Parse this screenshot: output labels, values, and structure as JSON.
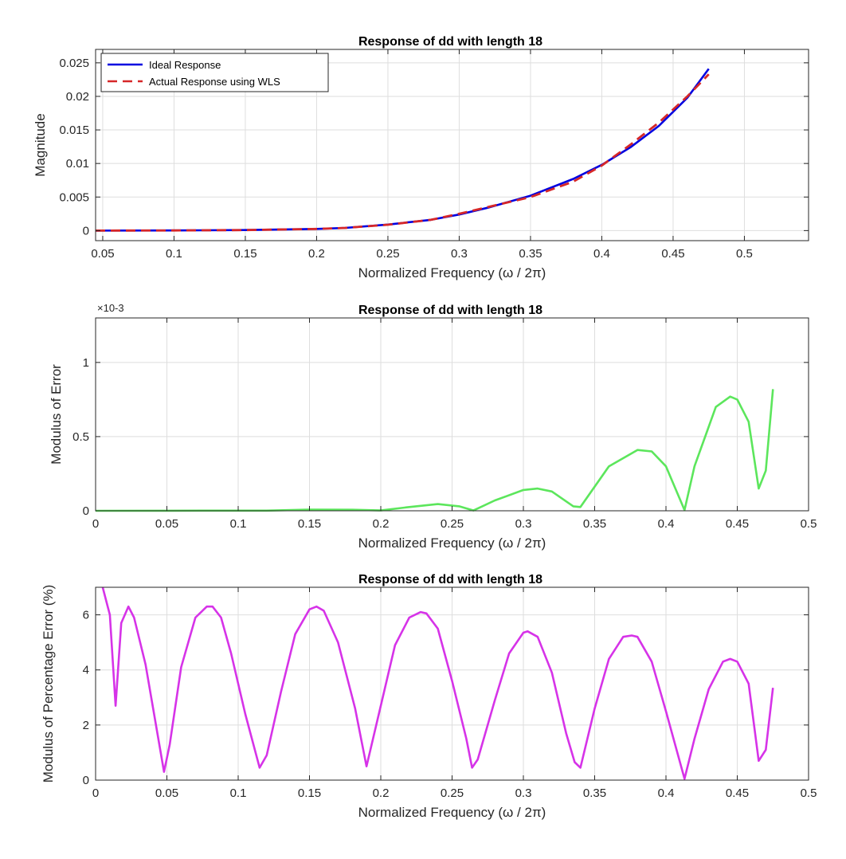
{
  "chart_data": [
    {
      "type": "line",
      "title": "Response of dd with length 18",
      "xlabel": "Normalized Frequency (ω / 2π)",
      "ylabel": "Magnitude",
      "xlim": [
        0.045,
        0.545
      ],
      "ylim": [
        -0.0015,
        0.027
      ],
      "xticks": [
        0.05,
        0.1,
        0.15,
        0.2,
        0.25,
        0.3,
        0.35,
        0.4,
        0.45,
        0.5
      ],
      "xtick_labels": [
        "0.05",
        "0.1",
        "0.15",
        "0.2",
        "0.25",
        "0.3",
        "0.35",
        "0.4",
        "0.45",
        "0.5"
      ],
      "yticks": [
        0,
        0.005,
        0.01,
        0.015,
        0.02,
        0.025
      ],
      "ytick_labels": [
        "0",
        "0.005",
        "0.01",
        "0.015",
        "0.02",
        "0.025"
      ],
      "grid": true,
      "legend_position": "top-left",
      "series": [
        {
          "name": "Ideal Response",
          "color": "#0000e0",
          "style": "solid",
          "x": [
            0.045,
            0.1,
            0.15,
            0.2,
            0.22,
            0.25,
            0.28,
            0.3,
            0.32,
            0.35,
            0.38,
            0.4,
            0.42,
            0.44,
            0.46,
            0.475
          ],
          "y": [
            0,
            2e-05,
            8e-05,
            0.00025,
            0.0004,
            0.0009,
            0.0016,
            0.0024,
            0.0034,
            0.0052,
            0.0077,
            0.0098,
            0.0124,
            0.0156,
            0.0198,
            0.0241
          ]
        },
        {
          "name": "Actual Response using WLS",
          "color": "#d62728",
          "style": "dashed",
          "x": [
            0.045,
            0.1,
            0.15,
            0.2,
            0.22,
            0.25,
            0.28,
            0.3,
            0.32,
            0.35,
            0.38,
            0.4,
            0.42,
            0.44,
            0.46,
            0.475
          ],
          "y": [
            0,
            2e-05,
            8e-05,
            0.00025,
            0.0004,
            0.00088,
            0.0016,
            0.0025,
            0.0035,
            0.005,
            0.0073,
            0.0097,
            0.0128,
            0.0161,
            0.02,
            0.0233
          ]
        }
      ]
    },
    {
      "type": "line",
      "title": "Response of dd with length 18",
      "xlabel": "Normalized Frequency (ω / 2π)",
      "ylabel": "Modulus of Error",
      "y_exponent": "×10-3",
      "xlim": [
        0,
        0.5
      ],
      "ylim": [
        0,
        1.3
      ],
      "xticks": [
        0,
        0.05,
        0.1,
        0.15,
        0.2,
        0.25,
        0.3,
        0.35,
        0.4,
        0.45,
        0.5
      ],
      "xtick_labels": [
        "0",
        "0.05",
        "0.1",
        "0.15",
        "0.2",
        "0.25",
        "0.3",
        "0.35",
        "0.4",
        "0.45",
        "0.5"
      ],
      "yticks": [
        0,
        0.5,
        1
      ],
      "ytick_labels": [
        "0",
        "0.5",
        "1"
      ],
      "grid": true,
      "series": [
        {
          "color": "#5ce65c",
          "x": [
            0,
            0.05,
            0.1,
            0.12,
            0.15,
            0.18,
            0.2,
            0.22,
            0.24,
            0.255,
            0.265,
            0.28,
            0.3,
            0.31,
            0.32,
            0.335,
            0.34,
            0.36,
            0.38,
            0.39,
            0.4,
            0.413,
            0.42,
            0.435,
            0.445,
            0.45,
            0.458,
            0.465,
            0.47,
            0.475
          ],
          "y": [
            0,
            0.0005,
            0.001,
            0.001,
            0.008,
            0.007,
            0.002,
            0.025,
            0.045,
            0.03,
            0.002,
            0.07,
            0.14,
            0.15,
            0.13,
            0.03,
            0.025,
            0.3,
            0.41,
            0.4,
            0.3,
            0.005,
            0.3,
            0.7,
            0.77,
            0.75,
            0.6,
            0.15,
            0.27,
            0.82
          ]
        }
      ]
    },
    {
      "type": "line",
      "title": "Response of dd with length 18",
      "xlabel": "Normalized Frequency (ω / 2π)",
      "ylabel": "Modulus of Percentage Error (%)",
      "xlim": [
        0,
        0.5
      ],
      "ylim": [
        0,
        7
      ],
      "xticks": [
        0,
        0.05,
        0.1,
        0.15,
        0.2,
        0.25,
        0.3,
        0.35,
        0.4,
        0.45,
        0.5
      ],
      "xtick_labels": [
        "0",
        "0.05",
        "0.1",
        "0.15",
        "0.2",
        "0.25",
        "0.3",
        "0.35",
        "0.4",
        "0.45",
        "0.5"
      ],
      "yticks": [
        0,
        2,
        4,
        6
      ],
      "ytick_labels": [
        "0",
        "2",
        "4",
        "6"
      ],
      "grid": true,
      "series": [
        {
          "color": "#d633e8",
          "x": [
            0.005,
            0.01,
            0.014,
            0.018,
            0.023,
            0.027,
            0.035,
            0.048,
            0.052,
            0.06,
            0.07,
            0.078,
            0.082,
            0.088,
            0.095,
            0.105,
            0.115,
            0.12,
            0.13,
            0.14,
            0.15,
            0.155,
            0.16,
            0.17,
            0.182,
            0.19,
            0.2,
            0.21,
            0.22,
            0.228,
            0.232,
            0.24,
            0.25,
            0.26,
            0.264,
            0.268,
            0.28,
            0.29,
            0.3,
            0.303,
            0.31,
            0.32,
            0.33,
            0.336,
            0.34,
            0.35,
            0.36,
            0.37,
            0.376,
            0.38,
            0.39,
            0.4,
            0.413,
            0.42,
            0.43,
            0.44,
            0.445,
            0.45,
            0.458,
            0.465,
            0.47,
            0.475
          ],
          "y": [
            7,
            6,
            2.7,
            5.7,
            6.3,
            5.9,
            4.2,
            0.3,
            1.3,
            4.1,
            5.9,
            6.3,
            6.3,
            5.9,
            4.6,
            2.4,
            0.45,
            0.9,
            3.2,
            5.3,
            6.2,
            6.3,
            6.15,
            5.0,
            2.6,
            0.5,
            2.7,
            4.9,
            5.9,
            6.1,
            6.05,
            5.5,
            3.6,
            1.5,
            0.45,
            0.75,
            2.9,
            4.6,
            5.35,
            5.4,
            5.2,
            3.9,
            1.7,
            0.65,
            0.45,
            2.6,
            4.4,
            5.2,
            5.25,
            5.2,
            4.3,
            2.5,
            0.05,
            1.5,
            3.3,
            4.3,
            4.4,
            4.3,
            3.5,
            0.7,
            1.1,
            3.35
          ]
        }
      ]
    }
  ]
}
